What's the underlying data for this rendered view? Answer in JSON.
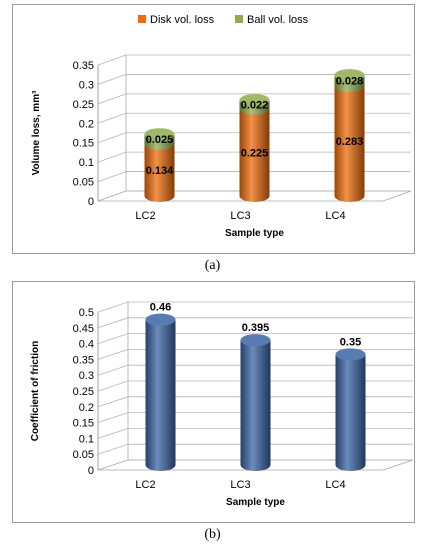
{
  "chart_data": [
    {
      "id": "a",
      "type": "bar",
      "stacked": true,
      "three_d": true,
      "categories": [
        "LC2",
        "LC3",
        "LC4"
      ],
      "series": [
        {
          "name": "Disk vol. loss",
          "values": [
            0.134,
            0.225,
            0.283
          ],
          "labels": [
            "0.134",
            "0.225",
            "0.283"
          ],
          "color": "#ee6c0c"
        },
        {
          "name": "Ball vol. loss",
          "values": [
            0.025,
            0.022,
            0.028
          ],
          "labels": [
            "0.025",
            "0.022",
            "0.028"
          ],
          "color": "#8fac4d"
        }
      ],
      "xlabel": "Sample type",
      "ylabel": "Volume loss, mm³",
      "ylim": [
        0,
        0.35
      ],
      "yticks": [
        0,
        0.05,
        0.1,
        0.15,
        0.2,
        0.25,
        0.3,
        0.35
      ],
      "ytick_labels": [
        "0",
        "0.05",
        "0.1",
        "0.15",
        "0.2",
        "0.25",
        "0.3",
        "0.35"
      ],
      "legend_position": "top",
      "grid": true
    },
    {
      "id": "b",
      "type": "bar",
      "three_d": true,
      "categories": [
        "LC2",
        "LC3",
        "LC4"
      ],
      "series": [
        {
          "values": [
            0.46,
            0.395,
            0.35
          ],
          "labels": [
            "0.46",
            "0.395",
            "0.35"
          ],
          "color": "#3a64a4"
        }
      ],
      "xlabel": "Sample type",
      "ylabel": "Coefficient of friction",
      "ylim": [
        0,
        0.5
      ],
      "yticks": [
        0,
        0.05,
        0.1,
        0.15,
        0.2,
        0.25,
        0.3,
        0.35,
        0.4,
        0.45,
        0.5
      ],
      "ytick_labels": [
        "0",
        "0.05",
        "0.1",
        "0.15",
        "0.2",
        "0.25",
        "0.3",
        "0.35",
        "0.4",
        "0.45",
        "0.5"
      ],
      "legend_position": "none",
      "grid": true
    }
  ],
  "captions": {
    "a": "(a)",
    "b": "(b)"
  }
}
